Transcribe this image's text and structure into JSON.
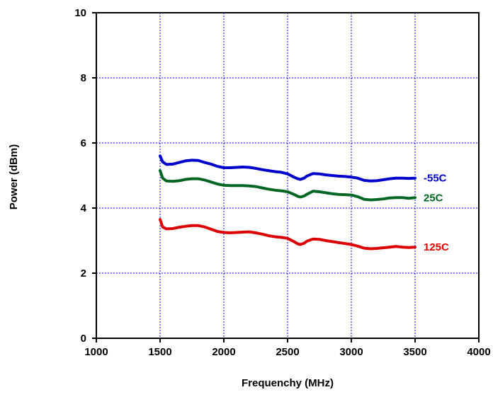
{
  "chart_data": {
    "type": "line",
    "title": "",
    "xlabel": "Frequenchy (MHz)",
    "ylabel": "Power (dBm)",
    "xlim": [
      1000,
      4000
    ],
    "ylim": [
      0,
      10
    ],
    "xticks": [
      1000,
      1500,
      2000,
      2500,
      3000,
      3500,
      4000
    ],
    "yticks": [
      0,
      2,
      4,
      6,
      8,
      10
    ],
    "xtick_labels": [
      "1000",
      "1500",
      "2000",
      "2500",
      "3000",
      "3500",
      "4000"
    ],
    "ytick_labels": [
      "0",
      "2",
      "4",
      "6",
      "8",
      "10"
    ],
    "grid": true,
    "legend": "inline labels at right end of each line",
    "series": [
      {
        "name": "-55C",
        "color": "#0000cc",
        "x": [
          1500,
          1520,
          1550,
          1600,
          1650,
          1700,
          1750,
          1800,
          1850,
          1900,
          1950,
          2000,
          2050,
          2100,
          2150,
          2200,
          2250,
          2300,
          2350,
          2400,
          2450,
          2500,
          2550,
          2580,
          2600,
          2630,
          2650,
          2700,
          2750,
          2800,
          2850,
          2900,
          2950,
          3000,
          3050,
          3100,
          3150,
          3200,
          3250,
          3300,
          3350,
          3400,
          3450,
          3500
        ],
        "y": [
          5.6,
          5.42,
          5.34,
          5.35,
          5.4,
          5.45,
          5.47,
          5.46,
          5.4,
          5.35,
          5.28,
          5.24,
          5.24,
          5.25,
          5.26,
          5.25,
          5.22,
          5.18,
          5.15,
          5.12,
          5.1,
          5.05,
          4.95,
          4.9,
          4.88,
          4.92,
          4.98,
          5.06,
          5.05,
          5.02,
          5.0,
          4.98,
          4.97,
          4.95,
          4.92,
          4.85,
          4.83,
          4.84,
          4.87,
          4.9,
          4.92,
          4.92,
          4.91,
          4.92
        ]
      },
      {
        "name": "25C",
        "color": "#006622",
        "x": [
          1500,
          1520,
          1550,
          1600,
          1650,
          1700,
          1750,
          1800,
          1850,
          1900,
          1950,
          2000,
          2050,
          2100,
          2150,
          2200,
          2250,
          2300,
          2350,
          2400,
          2450,
          2500,
          2550,
          2580,
          2600,
          2630,
          2650,
          2700,
          2750,
          2800,
          2850,
          2900,
          2950,
          3000,
          3050,
          3100,
          3150,
          3200,
          3250,
          3300,
          3350,
          3400,
          3450,
          3500
        ],
        "y": [
          5.15,
          4.92,
          4.83,
          4.82,
          4.84,
          4.88,
          4.9,
          4.9,
          4.86,
          4.8,
          4.74,
          4.7,
          4.69,
          4.69,
          4.69,
          4.68,
          4.66,
          4.62,
          4.58,
          4.55,
          4.53,
          4.5,
          4.42,
          4.36,
          4.34,
          4.37,
          4.42,
          4.52,
          4.5,
          4.47,
          4.44,
          4.42,
          4.41,
          4.4,
          4.35,
          4.27,
          4.25,
          4.26,
          4.28,
          4.31,
          4.32,
          4.32,
          4.3,
          4.32
        ]
      },
      {
        "name": "125C",
        "color": "#dd0000",
        "x": [
          1500,
          1520,
          1550,
          1600,
          1650,
          1700,
          1750,
          1800,
          1850,
          1900,
          1950,
          2000,
          2050,
          2100,
          2150,
          2200,
          2250,
          2300,
          2350,
          2400,
          2450,
          2500,
          2550,
          2580,
          2600,
          2630,
          2650,
          2700,
          2750,
          2800,
          2850,
          2900,
          2950,
          3000,
          3050,
          3100,
          3150,
          3200,
          3250,
          3300,
          3350,
          3400,
          3450,
          3500
        ],
        "y": [
          3.65,
          3.42,
          3.36,
          3.37,
          3.41,
          3.44,
          3.46,
          3.46,
          3.42,
          3.35,
          3.28,
          3.25,
          3.24,
          3.25,
          3.26,
          3.27,
          3.24,
          3.2,
          3.15,
          3.12,
          3.1,
          3.07,
          2.97,
          2.9,
          2.88,
          2.92,
          2.98,
          3.05,
          3.04,
          3.0,
          2.97,
          2.94,
          2.91,
          2.88,
          2.83,
          2.77,
          2.75,
          2.76,
          2.78,
          2.8,
          2.82,
          2.8,
          2.79,
          2.8
        ]
      }
    ]
  }
}
